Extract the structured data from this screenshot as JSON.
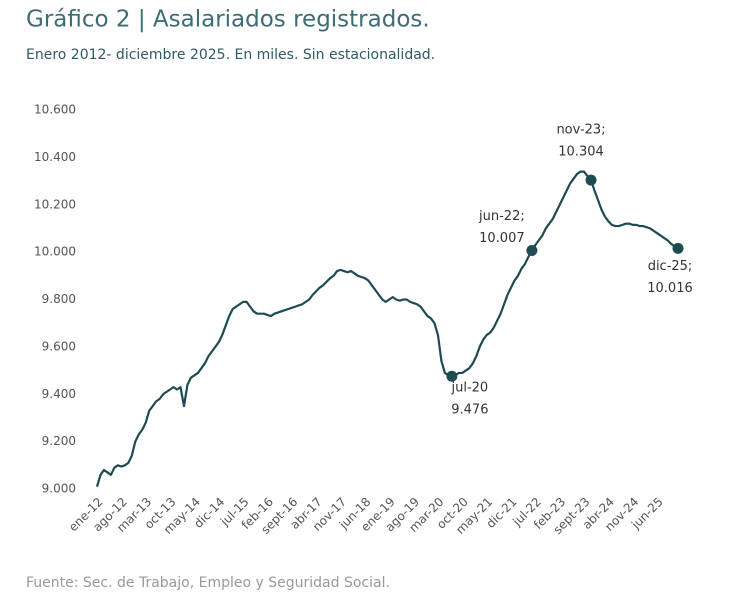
{
  "chart_data": {
    "type": "line",
    "title": "Gráfico 2 | Asalariados registrados.",
    "subtitle": "Enero 2012- diciembre 2025. En miles. Sin estacionalidad.",
    "source": "Fuente: Sec. de Trabajo, Empleo y Seguridad Social.",
    "categories": [
      "ene-12",
      null,
      null,
      null,
      null,
      null,
      null,
      "ago-12",
      null,
      null,
      null,
      null,
      null,
      null,
      "mar-13",
      null,
      null,
      null,
      null,
      null,
      null,
      "oct-13",
      null,
      null,
      null,
      null,
      null,
      null,
      "may-14",
      null,
      null,
      null,
      null,
      null,
      null,
      "dic-14",
      null,
      null,
      null,
      null,
      null,
      null,
      "jul-15",
      null,
      null,
      null,
      null,
      null,
      null,
      "feb-16",
      null,
      null,
      null,
      null,
      null,
      null,
      "sept-16",
      null,
      null,
      null,
      null,
      null,
      null,
      "abr-17",
      null,
      null,
      null,
      null,
      null,
      null,
      "nov-17",
      null,
      null,
      null,
      null,
      null,
      null,
      "jun-18",
      null,
      null,
      null,
      null,
      null,
      null,
      "ene-19",
      null,
      null,
      null,
      null,
      null,
      null,
      "ago-19",
      null,
      null,
      null,
      null,
      null,
      null,
      "mar-20",
      null,
      null,
      null,
      null,
      null,
      null,
      "oct-20",
      null,
      null,
      null,
      null,
      null,
      null,
      "may-21",
      null,
      null,
      null,
      null,
      null,
      null,
      "dic-21",
      null,
      null,
      null,
      null,
      null,
      null,
      "jul-22",
      null,
      null,
      null,
      null,
      null,
      null,
      "feb-23",
      null,
      null,
      null,
      null,
      null,
      null,
      "sept-23",
      null,
      null,
      null,
      null,
      null,
      null,
      "abr-24",
      null,
      null,
      null,
      null,
      null,
      null,
      "nov-24",
      null,
      null,
      null,
      null,
      null,
      null,
      "jun-25",
      null,
      null,
      null,
      null,
      null,
      null
    ],
    "series": [
      {
        "name": "Asalariados registrados",
        "color": "#1e4b52",
        "values": [
          9010,
          9060,
          9080,
          9070,
          9060,
          9090,
          9100,
          9095,
          9100,
          9110,
          9140,
          9200,
          9230,
          9250,
          9280,
          9330,
          9350,
          9370,
          9380,
          9400,
          9410,
          9420,
          9430,
          9420,
          9430,
          9350,
          9440,
          9470,
          9480,
          9490,
          9510,
          9530,
          9560,
          9580,
          9600,
          9620,
          9650,
          9690,
          9730,
          9760,
          9770,
          9780,
          9790,
          9790,
          9770,
          9750,
          9740,
          9740,
          9740,
          9735,
          9730,
          9740,
          9745,
          9750,
          9755,
          9760,
          9765,
          9770,
          9775,
          9780,
          9790,
          9800,
          9820,
          9835,
          9850,
          9860,
          9875,
          9890,
          9900,
          9920,
          9925,
          9920,
          9915,
          9920,
          9910,
          9900,
          9895,
          9890,
          9880,
          9860,
          9840,
          9820,
          9800,
          9790,
          9800,
          9810,
          9800,
          9795,
          9800,
          9800,
          9790,
          9785,
          9780,
          9770,
          9750,
          9730,
          9720,
          9700,
          9650,
          9540,
          9490,
          9480,
          9476,
          9480,
          9490,
          9490,
          9500,
          9510,
          9530,
          9560,
          9600,
          9630,
          9650,
          9660,
          9680,
          9710,
          9740,
          9780,
          9820,
          9850,
          9880,
          9900,
          9930,
          9950,
          9980,
          10007,
          10030,
          10050,
          10070,
          10100,
          10120,
          10140,
          10170,
          10200,
          10230,
          10260,
          10290,
          10310,
          10330,
          10340,
          10340,
          10320,
          10304,
          10260,
          10220,
          10180,
          10150,
          10130,
          10115,
          10110,
          10110,
          10115,
          10120,
          10120,
          10115,
          10115,
          10110,
          10110,
          10105,
          10100,
          10090,
          10080,
          10070,
          10060,
          10050,
          10035,
          10025,
          10016
        ],
        "value_labels": [
          null,
          null,
          null,
          null,
          null,
          null,
          null,
          null,
          null,
          null,
          null,
          null,
          null,
          null,
          null,
          null,
          null,
          null,
          null,
          null,
          null,
          null,
          null,
          null,
          null,
          null,
          null,
          null,
          null,
          null,
          null,
          null,
          null,
          null,
          null,
          null,
          null,
          null,
          null,
          null,
          null,
          null,
          null,
          null,
          null,
          null,
          null,
          null,
          null,
          null,
          null,
          null,
          null,
          null,
          null,
          null,
          null,
          null,
          null,
          null,
          null,
          null,
          null,
          null,
          null,
          null,
          null,
          null,
          null,
          null,
          null,
          null,
          null,
          null,
          null,
          null,
          null,
          null,
          null,
          null,
          null,
          null,
          null,
          null,
          null,
          null,
          null,
          null,
          null,
          null,
          null,
          null,
          null,
          null,
          null,
          null,
          null,
          null,
          null,
          null,
          null,
          null,
          "9.476",
          null,
          null,
          null,
          null,
          null,
          null,
          null,
          null,
          null,
          null,
          null,
          null,
          null,
          null,
          null,
          null,
          null,
          null,
          null,
          null,
          null,
          null,
          "10.007",
          null,
          null,
          null,
          null,
          null,
          null,
          null,
          null,
          null,
          null,
          null,
          null,
          null,
          null,
          null,
          null,
          "10.304",
          null,
          null,
          null,
          null,
          null,
          null,
          null,
          null,
          null,
          null,
          null,
          null,
          null,
          null,
          null,
          null,
          null,
          null,
          null,
          null,
          null,
          null,
          null,
          null,
          "10.016"
        ],
        "point_labels": [
          null,
          null,
          null,
          null,
          null,
          null,
          null,
          null,
          null,
          null,
          null,
          null,
          null,
          null,
          null,
          null,
          null,
          null,
          null,
          null,
          null,
          null,
          null,
          null,
          null,
          null,
          null,
          null,
          null,
          null,
          null,
          null,
          null,
          null,
          null,
          null,
          null,
          null,
          null,
          null,
          null,
          null,
          null,
          null,
          null,
          null,
          null,
          null,
          null,
          null,
          null,
          null,
          null,
          null,
          null,
          null,
          null,
          null,
          null,
          null,
          null,
          null,
          null,
          null,
          null,
          null,
          null,
          null,
          null,
          null,
          null,
          null,
          null,
          null,
          null,
          null,
          null,
          null,
          null,
          null,
          null,
          null,
          null,
          null,
          null,
          null,
          null,
          null,
          null,
          null,
          null,
          null,
          null,
          null,
          null,
          null,
          null,
          null,
          null,
          null,
          null,
          null,
          "jul-20",
          null,
          null,
          null,
          null,
          null,
          null,
          null,
          null,
          null,
          null,
          null,
          null,
          null,
          null,
          null,
          null,
          null,
          null,
          null,
          null,
          null,
          null,
          "jun-22;",
          null,
          null,
          null,
          null,
          null,
          null,
          null,
          null,
          null,
          null,
          null,
          null,
          null,
          null,
          null,
          null,
          "nov-23;",
          null,
          null,
          null,
          null,
          null,
          null,
          null,
          null,
          null,
          null,
          null,
          null,
          null,
          null,
          null,
          null,
          null,
          null,
          null,
          null,
          null,
          null,
          null,
          null,
          "dic-25;"
        ]
      }
    ],
    "ylim": [
      9000,
      10600
    ],
    "yticks": [
      {
        "value": 9000,
        "label": "9.000"
      },
      {
        "value": 9200,
        "label": "9.200"
      },
      {
        "value": 9400,
        "label": "9.400"
      },
      {
        "value": 9600,
        "label": "9.600"
      },
      {
        "value": 9800,
        "label": "9.800"
      },
      {
        "value": 10000,
        "label": "10.000"
      },
      {
        "value": 10200,
        "label": "10.200"
      },
      {
        "value": 10400,
        "label": "10.400"
      },
      {
        "value": 10600,
        "label": "10.600"
      }
    ],
    "grid": false
  }
}
